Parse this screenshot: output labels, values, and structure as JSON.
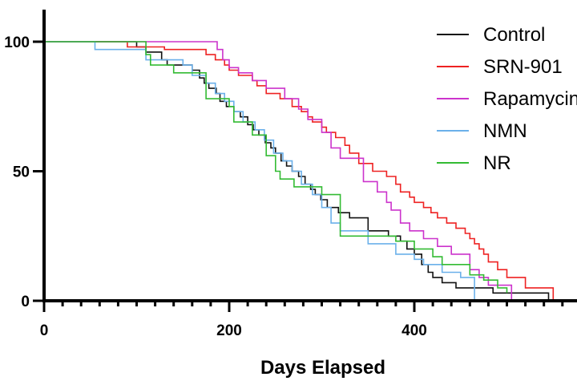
{
  "chart_data": {
    "type": "line",
    "title": "",
    "xlabel": "Days Elapsed",
    "ylabel": "",
    "xlim": [
      0,
      570
    ],
    "ylim": [
      0,
      100
    ],
    "x_ticks": [
      0,
      200,
      400
    ],
    "y_ticks": [
      0,
      50,
      100
    ],
    "x_tick_labels": [
      "0",
      "200",
      "400"
    ],
    "y_tick_labels": [
      "0",
      "50",
      "100"
    ],
    "grid": false,
    "legend": {
      "position": "top-right",
      "entries": [
        "Control",
        "SRN-901",
        "Rapamycin",
        "NMN",
        "NR"
      ]
    },
    "series": [
      {
        "name": "Control",
        "color": "#111111",
        "x": [
          0,
          97,
          100,
          110,
          127,
          133,
          160,
          168,
          173,
          178,
          186,
          190,
          197,
          205,
          212,
          220,
          226,
          232,
          239,
          245,
          250,
          256,
          262,
          268,
          275,
          282,
          288,
          293,
          299,
          306,
          318,
          330,
          350,
          372,
          385,
          392,
          400,
          408,
          415,
          420,
          430,
          445,
          460,
          470,
          485,
          500,
          520,
          545
        ],
        "y": [
          100,
          100,
          98,
          96,
          93,
          91,
          89,
          86,
          84,
          82,
          80,
          77,
          75,
          73,
          71,
          68,
          66,
          64,
          61,
          59,
          57,
          54,
          52,
          50,
          48,
          45,
          43,
          41,
          39,
          36,
          34,
          32,
          27,
          25,
          23,
          20,
          18,
          14,
          11,
          9,
          7,
          5,
          5,
          5,
          3,
          3,
          3,
          0
        ]
      },
      {
        "name": "SRN-901",
        "color": "#ee2222",
        "x": [
          0,
          90,
          130,
          175,
          185,
          195,
          200,
          210,
          225,
          230,
          240,
          255,
          268,
          278,
          285,
          290,
          300,
          305,
          315,
          325,
          330,
          340,
          355,
          370,
          380,
          385,
          395,
          400,
          410,
          418,
          425,
          435,
          445,
          455,
          460,
          465,
          470,
          475,
          480,
          490,
          500,
          520,
          550
        ],
        "y": [
          100,
          98,
          97,
          95,
          93,
          91,
          89,
          87,
          85,
          83,
          80,
          78,
          75,
          73,
          71,
          69,
          67,
          65,
          63,
          60,
          57,
          53,
          50,
          48,
          45,
          42,
          40,
          38,
          36,
          34,
          32,
          30,
          28,
          26,
          24,
          22,
          20,
          18,
          15,
          12,
          9,
          5,
          0
        ]
      },
      {
        "name": "Rapamycin",
        "color": "#cc33cc",
        "x": [
          0,
          110,
          187,
          193,
          200,
          210,
          225,
          240,
          260,
          275,
          285,
          300,
          310,
          320,
          345,
          360,
          370,
          375,
          385,
          395,
          410,
          425,
          440,
          460,
          470,
          480,
          505
        ],
        "y": [
          100,
          100,
          97,
          93,
          90,
          88,
          85,
          82,
          78,
          74,
          70,
          65,
          59,
          55,
          46,
          42,
          38,
          35,
          30,
          27,
          24,
          21,
          18,
          12,
          9,
          6,
          0
        ]
      },
      {
        "name": "NMN",
        "color": "#6bb0ea",
        "x": [
          0,
          55,
          110,
          150,
          160,
          175,
          185,
          195,
          205,
          215,
          228,
          238,
          248,
          258,
          268,
          278,
          290,
          300,
          310,
          320,
          350,
          380,
          400,
          410,
          430,
          450,
          465
        ],
        "y": [
          100,
          97,
          93,
          91,
          87,
          84,
          80,
          77,
          73,
          69,
          66,
          62,
          57,
          54,
          50,
          45,
          41,
          36,
          30,
          27,
          22,
          18,
          16,
          14,
          11,
          9,
          0
        ]
      },
      {
        "name": "NR",
        "color": "#33bb33",
        "x": [
          0,
          110,
          115,
          140,
          175,
          200,
          205,
          225,
          240,
          250,
          255,
          270,
          300,
          320,
          380,
          400,
          420,
          430,
          460,
          475,
          490,
          500
        ],
        "y": [
          100,
          95,
          91,
          88,
          78,
          75,
          69,
          64,
          56,
          50,
          47,
          44,
          41,
          25,
          23,
          20,
          17,
          14,
          10,
          8,
          5,
          3
        ]
      }
    ]
  }
}
